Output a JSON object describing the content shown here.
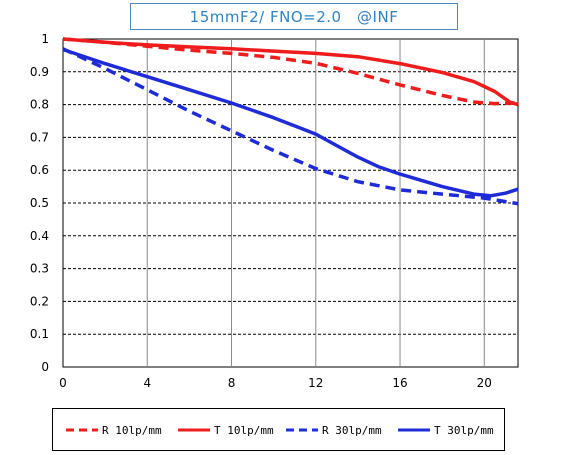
{
  "chart_data": {
    "type": "line",
    "title": "15mmF2/ FNO=2.0　@INF",
    "xlabel": "",
    "ylabel": "",
    "xlim": [
      0,
      21.6
    ],
    "ylim": [
      0,
      1
    ],
    "x_ticks": [
      "0",
      "4",
      "8",
      "12",
      "16",
      "20"
    ],
    "x_tick_values": [
      0,
      4,
      8,
      12,
      16,
      20
    ],
    "y_ticks": [
      "0",
      "0.1",
      "0.2",
      "0.3",
      "0.4",
      "0.5",
      "0.6",
      "0.7",
      "0.8",
      "0.9",
      "1"
    ],
    "y_tick_values": [
      0,
      0.1,
      0.2,
      0.3,
      0.4,
      0.5,
      0.6,
      0.7,
      0.8,
      0.9,
      1
    ],
    "grid": true,
    "legend_position": "bottom",
    "series": [
      {
        "name": "R 10lp/mm",
        "color": "#ee1c1c",
        "dash": true,
        "points": [
          [
            0,
            1.0
          ],
          [
            2,
            0.99
          ],
          [
            4,
            0.978
          ],
          [
            6,
            0.966
          ],
          [
            8,
            0.956
          ],
          [
            10,
            0.944
          ],
          [
            12,
            0.926
          ],
          [
            14,
            0.895
          ],
          [
            16,
            0.86
          ],
          [
            18,
            0.828
          ],
          [
            19.5,
            0.808
          ],
          [
            20.5,
            0.803
          ],
          [
            21.6,
            0.805
          ]
        ]
      },
      {
        "name": "T 10lp/mm",
        "color": "#ee1c1c",
        "dash": false,
        "points": [
          [
            0,
            1.0
          ],
          [
            2,
            0.99
          ],
          [
            4,
            0.982
          ],
          [
            6,
            0.976
          ],
          [
            8,
            0.97
          ],
          [
            10,
            0.963
          ],
          [
            12,
            0.956
          ],
          [
            14,
            0.946
          ],
          [
            16,
            0.925
          ],
          [
            18,
            0.898
          ],
          [
            19.5,
            0.87
          ],
          [
            20.5,
            0.84
          ],
          [
            21.2,
            0.808
          ],
          [
            21.6,
            0.8
          ]
        ]
      },
      {
        "name": "R 30lp/mm",
        "color": "#1f2bd6",
        "dash": true,
        "points": [
          [
            0,
            0.97
          ],
          [
            2,
            0.91
          ],
          [
            4,
            0.845
          ],
          [
            6,
            0.78
          ],
          [
            8,
            0.72
          ],
          [
            10,
            0.66
          ],
          [
            12,
            0.605
          ],
          [
            14,
            0.565
          ],
          [
            16,
            0.54
          ],
          [
            18,
            0.527
          ],
          [
            20,
            0.515
          ],
          [
            21.6,
            0.498
          ]
        ]
      },
      {
        "name": "T 30lp/mm",
        "color": "#1f2bd6",
        "dash": false,
        "points": [
          [
            0,
            0.968
          ],
          [
            2,
            0.925
          ],
          [
            4,
            0.885
          ],
          [
            6,
            0.845
          ],
          [
            8,
            0.805
          ],
          [
            10,
            0.76
          ],
          [
            12,
            0.71
          ],
          [
            13,
            0.675
          ],
          [
            14,
            0.64
          ],
          [
            15,
            0.61
          ],
          [
            16,
            0.588
          ],
          [
            18,
            0.55
          ],
          [
            19.5,
            0.527
          ],
          [
            20.3,
            0.522
          ],
          [
            21,
            0.53
          ],
          [
            21.6,
            0.542
          ]
        ]
      }
    ]
  }
}
